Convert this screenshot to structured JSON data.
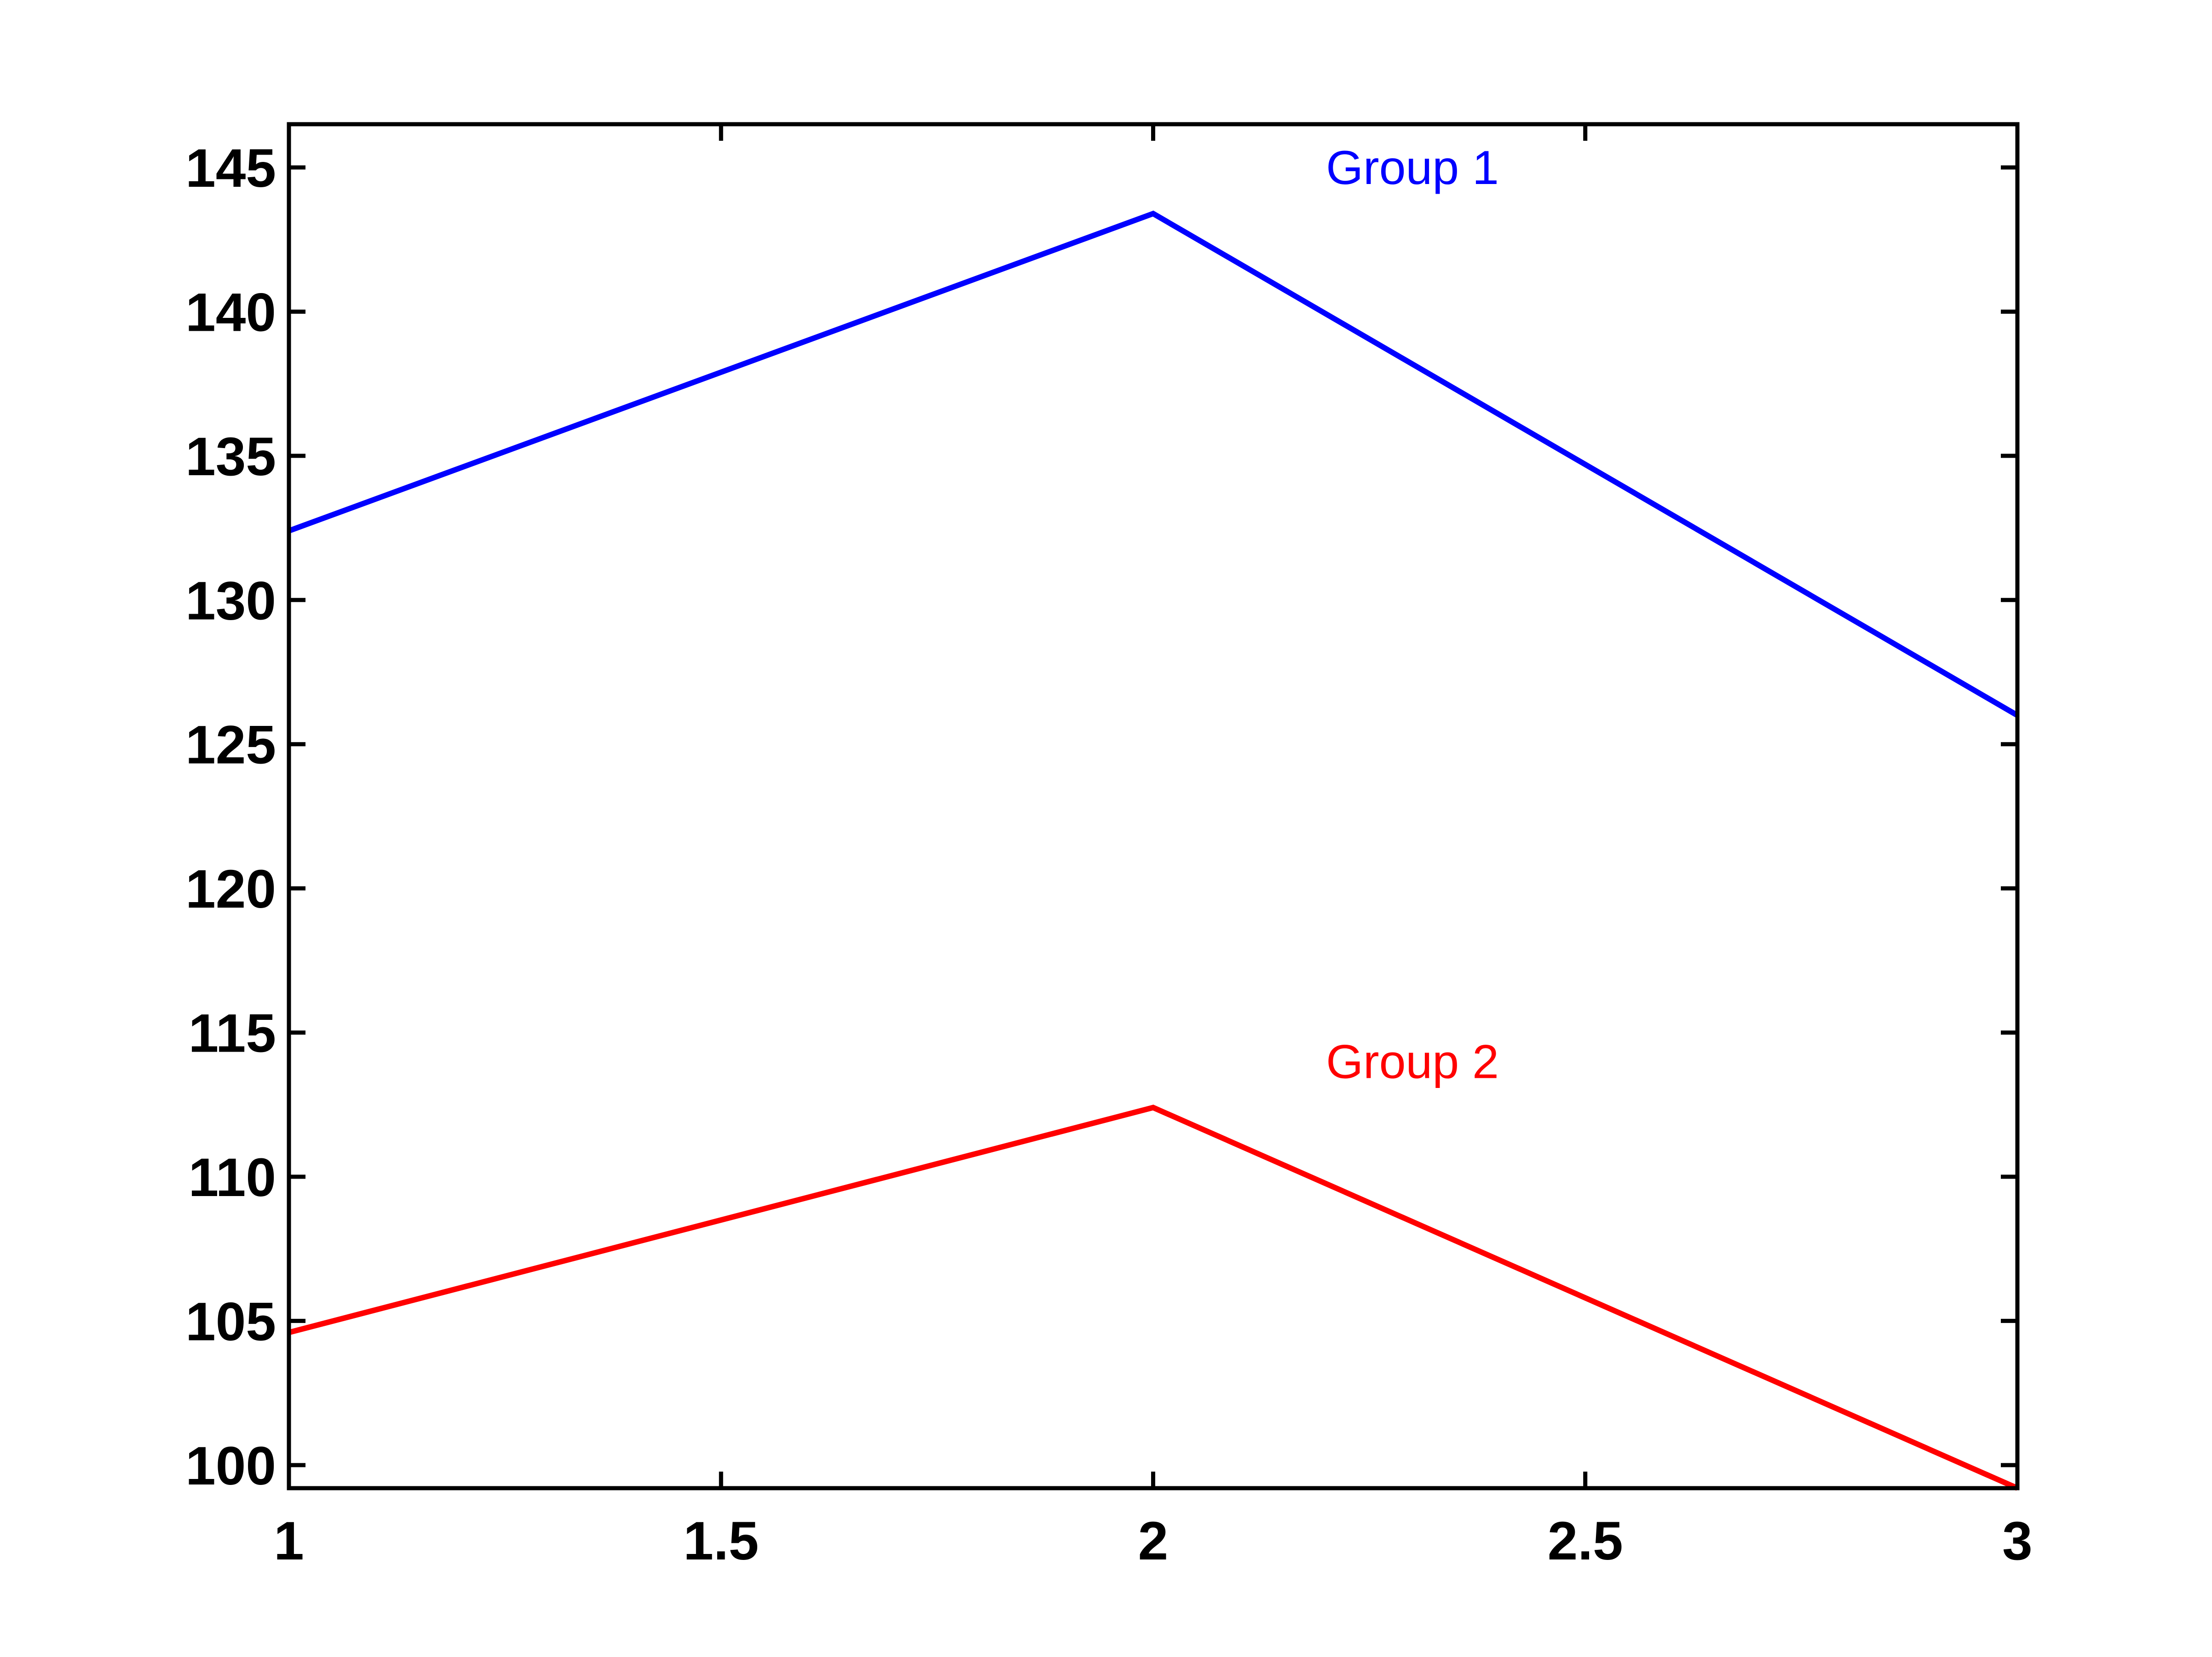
{
  "chart_data": {
    "type": "line",
    "title": "",
    "xlabel": "",
    "ylabel": "",
    "x": [
      1,
      2,
      3
    ],
    "series": [
      {
        "values": [
          132.4,
          143.4,
          126.0
        ],
        "color": "#0000ff"
      },
      {
        "values": [
          104.6,
          112.4,
          99.2
        ],
        "color": "#ff0000"
      }
    ],
    "xlim": [
      1,
      3
    ],
    "ylim": [
      99.2,
      146.5
    ],
    "xticks": [
      "1",
      "1.5",
      "2",
      "2.5",
      "3"
    ],
    "yticks": [
      "100",
      "105",
      "110",
      "115",
      "120",
      "125",
      "130",
      "135",
      "140",
      "145"
    ],
    "annotations": [
      {
        "text": "Group 1",
        "x": 2.2,
        "y": 145,
        "color": "#0000ff"
      },
      {
        "text": "Group 2",
        "x": 2.2,
        "y": 114,
        "color": "#ff0000"
      }
    ],
    "grid": false,
    "box": true
  }
}
